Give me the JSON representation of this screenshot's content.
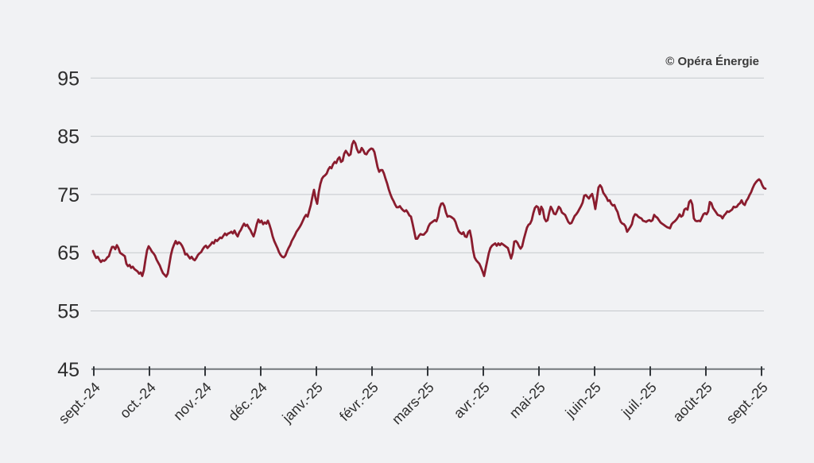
{
  "page": {
    "background": "#f1f2f4"
  },
  "attribution": "© Opéra Énergie",
  "chart_data": {
    "type": "line",
    "title": "",
    "source_label": "© Opéra Énergie",
    "series_name": "prix",
    "line_color": "#8a1c2e",
    "grid": "horizontal",
    "legend": "none",
    "x_tick_labels": [
      "sept.-24",
      "oct.-24",
      "nov.-24",
      "déc.-24",
      "janv.-25",
      "févr.-25",
      "mars-25",
      "avr.-25",
      "mai-25",
      "juin-25",
      "juil.-25",
      "août-25",
      "sept.-25"
    ],
    "y_ticks": [
      45,
      55,
      65,
      75,
      85,
      95
    ],
    "ylim": [
      45,
      97
    ],
    "x_start_month": -0.014,
    "x_end_month": 12.07,
    "values": [
      65.3,
      64.6,
      64.1,
      64.3,
      63.8,
      63.4,
      63.7,
      63.6,
      63.8,
      64.2,
      64.4,
      65.3,
      66.0,
      66.0,
      65.6,
      66.3,
      65.8,
      65.0,
      64.8,
      64.6,
      64.4,
      63.1,
      62.7,
      62.9,
      62.4,
      62.6,
      62.2,
      62.0,
      61.8,
      61.4,
      61.6,
      61.0,
      62.0,
      63.8,
      65.4,
      66.1,
      65.7,
      65.2,
      64.9,
      64.5,
      63.8,
      63.3,
      62.8,
      62.1,
      61.5,
      61.2,
      60.9,
      61.4,
      63.0,
      64.6,
      65.7,
      66.4,
      67.0,
      66.5,
      66.8,
      66.6,
      66.2,
      65.6,
      64.7,
      64.8,
      64.4,
      64.0,
      64.3,
      63.9,
      63.7,
      64.1,
      64.6,
      64.9,
      65.1,
      65.6,
      66.0,
      66.2,
      65.8,
      66.1,
      66.4,
      66.8,
      66.6,
      67.2,
      67.0,
      67.3,
      67.6,
      67.5,
      67.9,
      68.3,
      68.0,
      68.3,
      68.4,
      68.6,
      68.3,
      68.8,
      68.2,
      67.8,
      68.5,
      68.9,
      69.5,
      70.0,
      69.6,
      69.8,
      69.3,
      68.9,
      68.3,
      67.8,
      68.7,
      69.9,
      70.7,
      70.2,
      70.5,
      69.9,
      70.2,
      70.0,
      70.5,
      69.8,
      68.9,
      67.8,
      67.0,
      66.4,
      65.8,
      65.1,
      64.6,
      64.3,
      64.2,
      64.5,
      65.2,
      65.8,
      66.3,
      67.0,
      67.5,
      68.0,
      68.6,
      69.0,
      69.4,
      69.9,
      70.5,
      71.1,
      71.5,
      71.2,
      72.2,
      73.2,
      74.6,
      75.8,
      74.3,
      73.4,
      75.4,
      76.8,
      77.7,
      78.1,
      78.3,
      78.6,
      79.3,
      79.7,
      79.5,
      80.2,
      80.6,
      80.4,
      81.1,
      81.4,
      80.6,
      80.8,
      82.0,
      82.5,
      82.1,
      81.7,
      81.9,
      83.6,
      84.2,
      83.8,
      82.8,
      82.2,
      82.3,
      83.0,
      82.6,
      82.0,
      81.9,
      82.4,
      82.7,
      82.9,
      82.8,
      82.3,
      81.0,
      79.7,
      78.9,
      79.2,
      79.2,
      78.6,
      77.7,
      76.9,
      75.9,
      75.1,
      74.4,
      73.9,
      73.3,
      72.8,
      72.8,
      73.0,
      72.6,
      72.3,
      72.1,
      72.3,
      71.9,
      71.4,
      71.2,
      70.0,
      68.7,
      67.4,
      67.4,
      67.9,
      68.2,
      68.1,
      68.1,
      68.4,
      68.7,
      69.5,
      70.0,
      70.2,
      70.4,
      70.6,
      70.4,
      71.2,
      72.7,
      73.4,
      73.5,
      73.0,
      71.9,
      71.2,
      71.3,
      71.2,
      71.0,
      70.8,
      70.3,
      69.4,
      68.7,
      68.4,
      68.2,
      68.5,
      67.8,
      67.7,
      68.5,
      68.8,
      67.5,
      65.5,
      64.2,
      63.7,
      63.4,
      63.1,
      62.5,
      61.8,
      61.0,
      62.3,
      63.6,
      64.9,
      65.8,
      66.2,
      66.4,
      66.6,
      66.2,
      66.6,
      66.3,
      66.6,
      66.4,
      66.2,
      66.0,
      65.8,
      64.9,
      64.0,
      64.9,
      66.9,
      67.0,
      66.7,
      66.1,
      65.7,
      66.1,
      67.3,
      68.3,
      69.3,
      69.8,
      70.0,
      70.6,
      71.8,
      72.7,
      73.0,
      72.8,
      71.6,
      72.9,
      72.4,
      70.9,
      70.4,
      70.6,
      71.9,
      72.9,
      72.4,
      71.7,
      71.6,
      72.2,
      72.9,
      72.6,
      71.9,
      71.7,
      71.5,
      70.9,
      70.3,
      70.0,
      70.1,
      70.7,
      71.3,
      71.6,
      72.0,
      72.5,
      73.0,
      73.6,
      74.8,
      74.9,
      74.6,
      74.3,
      74.8,
      75.1,
      74.0,
      72.5,
      74.3,
      76.2,
      76.6,
      76.2,
      75.3,
      74.9,
      74.5,
      73.9,
      74.0,
      73.4,
      73.1,
      73.2,
      72.5,
      72.0,
      71.0,
      70.3,
      70.0,
      69.9,
      69.5,
      68.6,
      69.0,
      69.4,
      69.9,
      71.1,
      71.6,
      71.5,
      71.2,
      71.0,
      70.9,
      70.5,
      70.4,
      70.3,
      70.5,
      70.6,
      70.4,
      70.6,
      71.5,
      71.2,
      71.0,
      70.6,
      70.2,
      70.0,
      69.8,
      69.6,
      69.4,
      69.3,
      69.2,
      69.9,
      70.2,
      70.4,
      70.7,
      71.1,
      71.6,
      71.2,
      71.4,
      72.4,
      72.6,
      72.4,
      73.7,
      74.0,
      73.3,
      70.9,
      70.5,
      70.4,
      70.5,
      70.4,
      71.0,
      71.6,
      71.8,
      71.6,
      72.1,
      73.7,
      73.5,
      72.7,
      72.3,
      71.9,
      71.5,
      71.4,
      71.3,
      70.9,
      71.4,
      71.7,
      72.1,
      72.0,
      72.2,
      72.4,
      72.9,
      72.8,
      72.9,
      73.3,
      73.5,
      74.0,
      73.4,
      73.2,
      73.9,
      74.3,
      74.9,
      75.4,
      76.1,
      76.7,
      77.1,
      77.4,
      77.6,
      77.3,
      76.6,
      76.1,
      76.0
    ]
  }
}
